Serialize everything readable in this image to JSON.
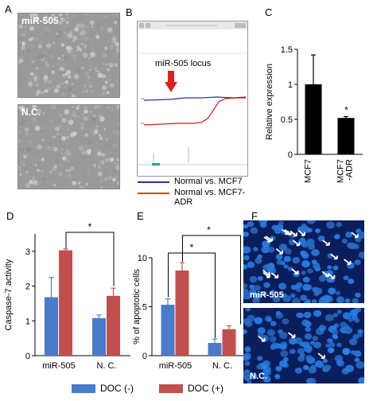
{
  "panels": {
    "a": {
      "letter": "A",
      "top_label": "miR-505",
      "bottom_label": "N.C."
    },
    "b": {
      "letter": "B",
      "locus_label": "miR-505 locus",
      "legend": [
        {
          "label": "Normal vs. MCF7",
          "color": "#2233aa"
        },
        {
          "label": "Normal vs. MCF7-ADR",
          "color": "#c05020"
        }
      ]
    },
    "c": {
      "letter": "C"
    },
    "d": {
      "letter": "D"
    },
    "e": {
      "letter": "E"
    },
    "f": {
      "letter": "F",
      "top_label": "miR-505",
      "bottom_label": "N.C."
    }
  },
  "colors": {
    "doc_minus": "#4a7bc8",
    "doc_plus": "#c0504d",
    "bar_black": "#000000"
  },
  "legend": [
    {
      "label": "DOC (-)",
      "color": "#4a7bc8"
    },
    {
      "label": "DOC (+)",
      "color": "#c0504d"
    }
  ],
  "chart_data": [
    {
      "panel": "C",
      "type": "bar",
      "categories": [
        "MCF7",
        "MCF7\n-ADR"
      ],
      "values": [
        1.0,
        0.52
      ],
      "errors": [
        0.42,
        0.02
      ],
      "significance": [
        "",
        "*"
      ],
      "ylabel": "Relative expression",
      "ylim": [
        0,
        1.5
      ],
      "yticks": [
        0,
        0.5,
        1,
        1.5
      ],
      "ytick_labels": [
        "0",
        "0.5",
        "1",
        "1.5"
      ]
    },
    {
      "panel": "D",
      "type": "bar",
      "categories": [
        "miR-505",
        "N. C."
      ],
      "series": [
        {
          "name": "DOC (-)",
          "values": [
            1.68,
            1.08
          ],
          "errors": [
            0.57,
            0.09
          ]
        },
        {
          "name": "DOC (+)",
          "values": [
            3.03,
            1.72
          ],
          "errors": [
            0.04,
            0.22
          ]
        }
      ],
      "ylabel": "Caspase-7 activity",
      "ylim": [
        0,
        3.5
      ],
      "yticks": [
        0,
        1,
        2,
        3
      ],
      "ytick_labels": [
        "0",
        "1",
        "2",
        "3"
      ],
      "significance": "*"
    },
    {
      "panel": "E",
      "type": "bar",
      "categories": [
        "miR-505",
        "N. C."
      ],
      "series": [
        {
          "name": "DOC (-)",
          "values": [
            5.2,
            1.3
          ],
          "errors": [
            0.6,
            0.4
          ]
        },
        {
          "name": "DOC (+)",
          "values": [
            8.7,
            2.7
          ],
          "errors": [
            0.8,
            0.35
          ]
        }
      ],
      "ylabel": "% of apoptotic cells",
      "ylim": [
        0,
        10
      ],
      "yticks": [
        0,
        5,
        10
      ],
      "ytick_labels": [
        "0",
        "5",
        "10"
      ],
      "significance": [
        "*",
        "*"
      ]
    }
  ]
}
